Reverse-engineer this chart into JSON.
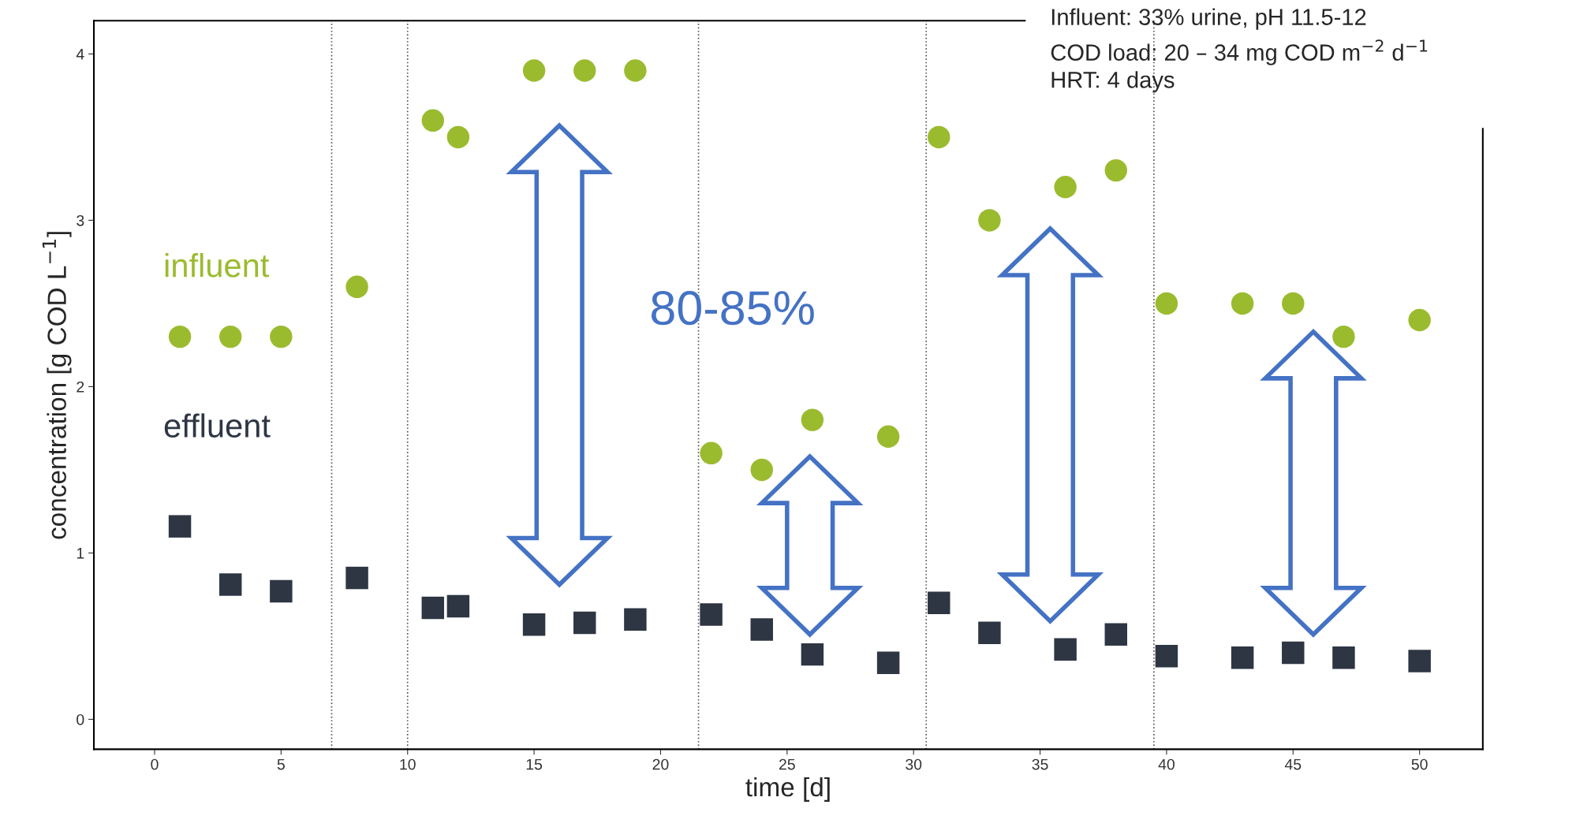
{
  "chart_data": {
    "type": "scatter",
    "xlabel": "time [d]",
    "ylabel": "concentration [g COD L$^{−1}$]",
    "xlim": [
      -2.4,
      52.5
    ],
    "ylim": [
      -0.18,
      4.2
    ],
    "xticks": [
      0,
      5,
      10,
      15,
      20,
      25,
      30,
      35,
      40,
      45,
      50
    ],
    "yticks": [
      0,
      1,
      2,
      3,
      4
    ],
    "grid": false,
    "legend": false,
    "x": [
      1,
      3,
      5,
      8,
      11,
      12,
      15,
      17,
      19,
      22,
      24,
      26,
      29,
      31,
      33,
      36,
      38,
      40,
      43,
      45,
      47,
      50
    ],
    "series": [
      {
        "name": "influent",
        "color": "#9bbb2f",
        "marker": "circle",
        "values": [
          2.3,
          2.3,
          2.3,
          2.6,
          3.6,
          3.5,
          3.9,
          3.9,
          3.9,
          1.6,
          1.5,
          1.8,
          1.7,
          3.5,
          3.0,
          3.2,
          3.3,
          2.5,
          2.5,
          2.5,
          2.3,
          2.4
        ]
      },
      {
        "name": "effluent",
        "color": "#2e3644",
        "marker": "square",
        "values": [
          1.16,
          0.81,
          0.77,
          0.85,
          0.67,
          0.68,
          0.57,
          0.58,
          0.6,
          0.63,
          0.54,
          0.39,
          0.34,
          0.7,
          0.52,
          0.42,
          0.51,
          0.38,
          0.37,
          0.4,
          0.37,
          0.35
        ]
      }
    ],
    "ref_lines": [
      {
        "axis": "x",
        "value": 7,
        "line_style": "dotted",
        "color": "#555555"
      },
      {
        "axis": "x",
        "value": 10,
        "line_style": "dotted",
        "color": "#555555"
      },
      {
        "axis": "x",
        "value": 21.5,
        "line_style": "dotted",
        "color": "#555555"
      },
      {
        "axis": "x",
        "value": 30.5,
        "line_style": "dotted",
        "color": "#555555"
      },
      {
        "axis": "x",
        "value": 39.5,
        "line_style": "dotted",
        "color": "#555555"
      }
    ],
    "annotations": [
      "Influent: 33% urine, pH 11.5-12",
      "COD load: 20 – 34 mg COD m$^{−2}$ d$^{−1}$",
      "HRT: 4 days",
      "80-85%"
    ]
  }
}
